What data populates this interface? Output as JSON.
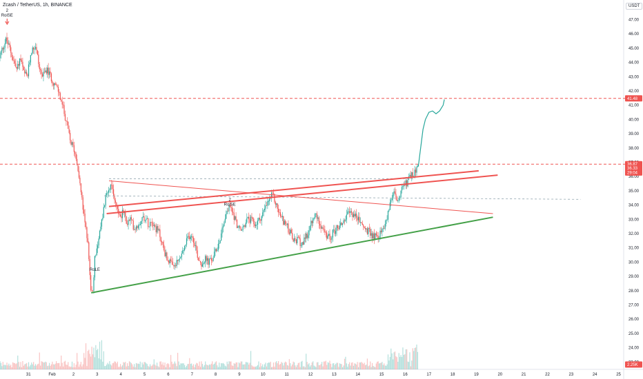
{
  "header": {
    "symbol_title": "Zcash / TetherUS, 1h, BINANCE",
    "currency_badge": "USDT"
  },
  "colors": {
    "up": "#26a69a",
    "down": "#ef5350",
    "resistance": "#ef5350",
    "support": "#43a047",
    "projection": "#26a69a",
    "dotted": "#90a4ae"
  },
  "chart_data": {
    "type": "candlestick",
    "symbol": "Zcash / TetherUS",
    "interval": "1h",
    "exchange": "BINANCE",
    "currency": "USDT",
    "ylim": [
      22.7,
      48.0
    ],
    "x_ticks": [
      {
        "label": "31",
        "t": 1.2
      },
      {
        "label": "Feb",
        "t": 2.2
      },
      {
        "label": "2",
        "t": 3.1
      },
      {
        "label": "3",
        "t": 4.1
      },
      {
        "label": "4",
        "t": 5.1
      },
      {
        "label": "5",
        "t": 6.1
      },
      {
        "label": "6",
        "t": 7.1
      },
      {
        "label": "7",
        "t": 8.1
      },
      {
        "label": "8",
        "t": 9.1
      },
      {
        "label": "9",
        "t": 10.1
      },
      {
        "label": "10",
        "t": 11.1
      },
      {
        "label": "11",
        "t": 12.1
      },
      {
        "label": "12",
        "t": 13.1
      },
      {
        "label": "13",
        "t": 14.1
      },
      {
        "label": "14",
        "t": 15.1
      },
      {
        "label": "15",
        "t": 16.1
      },
      {
        "label": "16",
        "t": 17.1
      },
      {
        "label": "17",
        "t": 18.1
      },
      {
        "label": "18",
        "t": 19.1
      },
      {
        "label": "19",
        "t": 20.1
      },
      {
        "label": "20",
        "t": 21.1
      },
      {
        "label": "21",
        "t": 22.1
      },
      {
        "label": "22",
        "t": 23.1
      },
      {
        "label": "23",
        "t": 24.1
      },
      {
        "label": "24",
        "t": 25.1
      },
      {
        "label": "25",
        "t": 26.1
      }
    ],
    "y_ticks": [
      "47.00",
      "46.00",
      "45.00",
      "44.00",
      "43.00",
      "42.00",
      "41.00",
      "40.00",
      "39.00",
      "38.00",
      "37.00",
      "36.00",
      "35.00",
      "34.00",
      "33.00",
      "32.00",
      "31.00",
      "30.00",
      "29.00",
      "28.00",
      "27.00",
      "26.00",
      "25.00",
      "24.00",
      "23.00"
    ],
    "price_path": [
      [
        0.0,
        44.3
      ],
      [
        0.15,
        45.0
      ],
      [
        0.3,
        45.6
      ],
      [
        0.45,
        45.0
      ],
      [
        0.6,
        44.2
      ],
      [
        0.75,
        43.5
      ],
      [
        0.9,
        44.3
      ],
      [
        1.05,
        43.2
      ],
      [
        1.2,
        43.0
      ],
      [
        1.35,
        44.8
      ],
      [
        1.55,
        45.2
      ],
      [
        1.7,
        43.6
      ],
      [
        1.85,
        43.0
      ],
      [
        2.0,
        43.5
      ],
      [
        2.15,
        43.1
      ],
      [
        2.3,
        42.6
      ],
      [
        2.5,
        42.0
      ],
      [
        2.7,
        40.8
      ],
      [
        2.85,
        39.8
      ],
      [
        3.0,
        38.5
      ],
      [
        3.15,
        38.0
      ],
      [
        3.3,
        37.0
      ],
      [
        3.45,
        35.0
      ],
      [
        3.6,
        33.0
      ],
      [
        3.75,
        31.5
      ],
      [
        3.85,
        28.5
      ],
      [
        3.95,
        27.5
      ],
      [
        4.05,
        30.5
      ],
      [
        4.2,
        31.5
      ],
      [
        4.35,
        33.0
      ],
      [
        4.5,
        34.5
      ],
      [
        4.65,
        35.4
      ],
      [
        4.8,
        35.0
      ],
      [
        4.95,
        34.0
      ],
      [
        5.1,
        33.2
      ],
      [
        5.25,
        33.5
      ],
      [
        5.4,
        32.7
      ],
      [
        5.55,
        33.0
      ],
      [
        5.7,
        32.4
      ],
      [
        5.85,
        32.6
      ],
      [
        6.0,
        33.0
      ],
      [
        6.15,
        33.2
      ],
      [
        6.3,
        32.7
      ],
      [
        6.45,
        33.0
      ],
      [
        6.6,
        32.4
      ],
      [
        6.75,
        32.1
      ],
      [
        6.9,
        31.2
      ],
      [
        7.05,
        30.4
      ],
      [
        7.2,
        30.0
      ],
      [
        7.35,
        29.6
      ],
      [
        7.5,
        29.9
      ],
      [
        7.65,
        30.3
      ],
      [
        7.8,
        30.9
      ],
      [
        7.95,
        31.6
      ],
      [
        8.1,
        32.0
      ],
      [
        8.25,
        31.4
      ],
      [
        8.4,
        30.3
      ],
      [
        8.55,
        29.9
      ],
      [
        8.7,
        30.2
      ],
      [
        8.85,
        30.0
      ],
      [
        9.0,
        30.2
      ],
      [
        9.15,
        30.8
      ],
      [
        9.3,
        31.5
      ],
      [
        9.45,
        32.6
      ],
      [
        9.6,
        33.5
      ],
      [
        9.75,
        33.9
      ],
      [
        9.9,
        33.3
      ],
      [
        10.05,
        32.6
      ],
      [
        10.2,
        32.1
      ],
      [
        10.35,
        32.6
      ],
      [
        10.5,
        33.0
      ],
      [
        10.65,
        32.9
      ],
      [
        10.8,
        32.6
      ],
      [
        10.95,
        32.9
      ],
      [
        11.1,
        33.3
      ],
      [
        11.25,
        33.8
      ],
      [
        11.4,
        34.4
      ],
      [
        11.55,
        34.7
      ],
      [
        11.7,
        34.0
      ],
      [
        11.85,
        33.3
      ],
      [
        12.0,
        32.9
      ],
      [
        12.15,
        32.5
      ],
      [
        12.3,
        32.0
      ],
      [
        12.45,
        31.4
      ],
      [
        12.6,
        31.6
      ],
      [
        12.75,
        31.3
      ],
      [
        12.9,
        31.5
      ],
      [
        13.05,
        32.1
      ],
      [
        13.2,
        32.8
      ],
      [
        13.35,
        33.3
      ],
      [
        13.5,
        32.9
      ],
      [
        13.65,
        32.4
      ],
      [
        13.8,
        31.8
      ],
      [
        13.95,
        31.7
      ],
      [
        14.1,
        32.1
      ],
      [
        14.25,
        32.4
      ],
      [
        14.4,
        32.6
      ],
      [
        14.55,
        32.9
      ],
      [
        14.7,
        33.3
      ],
      [
        14.85,
        33.5
      ],
      [
        15.0,
        33.3
      ],
      [
        15.15,
        33.0
      ],
      [
        15.3,
        32.7
      ],
      [
        15.45,
        32.3
      ],
      [
        15.6,
        32.1
      ],
      [
        15.75,
        31.9
      ],
      [
        15.9,
        31.8
      ],
      [
        16.05,
        31.9
      ],
      [
        16.2,
        32.3
      ],
      [
        16.35,
        33.0
      ],
      [
        16.5,
        34.2
      ],
      [
        16.65,
        34.8
      ],
      [
        16.8,
        34.4
      ],
      [
        16.95,
        34.9
      ],
      [
        17.1,
        35.3
      ],
      [
        17.25,
        35.7
      ],
      [
        17.4,
        36.0
      ],
      [
        17.55,
        36.3
      ],
      [
        17.65,
        36.7
      ]
    ],
    "volume_scale_max": 48,
    "projection": [
      [
        17.65,
        36.7
      ],
      [
        17.75,
        38.0
      ],
      [
        17.85,
        39.3
      ],
      [
        17.95,
        40.0
      ],
      [
        18.1,
        40.5
      ],
      [
        18.25,
        40.6
      ],
      [
        18.4,
        40.4
      ],
      [
        18.55,
        40.6
      ],
      [
        18.7,
        41.0
      ],
      [
        18.75,
        41.4
      ]
    ],
    "lines": [
      {
        "role": "horizontal-resistance",
        "from": [
          0,
          41.48
        ],
        "to": [
          26.6,
          41.48
        ],
        "dashed": true,
        "price": "41.48"
      },
      {
        "role": "horizontal-level",
        "from": [
          0,
          36.87
        ],
        "to": [
          26.6,
          36.87
        ],
        "dashed": true,
        "price": "36.87"
      },
      {
        "role": "dotted-level-high",
        "from": [
          4.6,
          35.85
        ],
        "to": [
          17.5,
          35.85
        ],
        "dotted": true
      },
      {
        "role": "dotted-level-low",
        "from": [
          4.4,
          34.65
        ],
        "to": [
          24.5,
          34.4
        ],
        "dotted": true
      },
      {
        "role": "descending-line",
        "from": [
          4.6,
          35.7
        ],
        "to": [
          20.8,
          33.4
        ]
      },
      {
        "role": "ascending-channel-upper",
        "from": [
          4.6,
          33.9
        ],
        "to": [
          20.2,
          36.4
        ],
        "thick": true
      },
      {
        "role": "ascending-channel-lower",
        "from": [
          4.5,
          33.4
        ],
        "to": [
          21.0,
          36.1
        ],
        "thick": true
      },
      {
        "role": "support-trendline",
        "from": [
          3.85,
          27.85
        ],
        "to": [
          20.8,
          33.15
        ],
        "thick": true
      }
    ],
    "annotations": [
      {
        "lines": [
          "2",
          "RoiSE"
        ],
        "t": 0.3,
        "price": 47.55
      },
      {
        "lines": [
          "RoLE"
        ],
        "t": 4.0,
        "price": 29.4
      },
      {
        "lines": [
          "2",
          "RoiSE"
        ],
        "t": 9.7,
        "price": 34.3
      }
    ],
    "price_tags": [
      {
        "label": "41.48",
        "price": 41.48,
        "color": "#ef5350"
      },
      {
        "label": "36.87",
        "price": 36.87,
        "color": "#ef5350"
      },
      {
        "label": "36.33",
        "price": 36.58,
        "color": "#ef5350"
      },
      {
        "label": "29:04",
        "price": 36.28,
        "color": "#ef5350"
      },
      {
        "label": "2.25K",
        "price": 22.82,
        "color": "#ef5350"
      }
    ]
  }
}
